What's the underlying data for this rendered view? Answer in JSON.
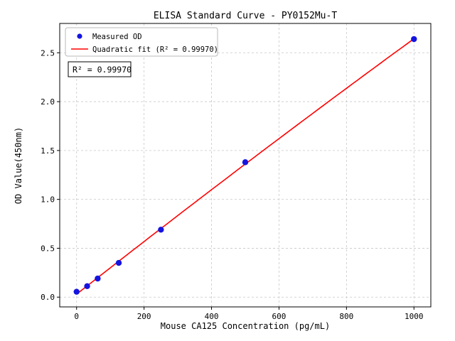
{
  "chart_data": {
    "type": "scatter",
    "title": "ELISA Standard Curve - PY0152Mu-T",
    "xlabel": "Mouse CA125 Concentration (pg/mL)",
    "ylabel": "OD Value(450nm)",
    "xlim": [
      -50,
      1050
    ],
    "ylim": [
      -0.1,
      2.8
    ],
    "xticks": [
      0,
      200,
      400,
      600,
      800,
      1000
    ],
    "yticks": [
      0,
      0.5,
      1.0,
      1.5,
      2.0,
      2.5
    ],
    "grid": true,
    "legend_position": "upper left",
    "series": [
      {
        "name": "Measured OD",
        "type": "scatter",
        "color": "#1414e0",
        "x": [
          0,
          31.25,
          62.5,
          125,
          250,
          500,
          1000
        ],
        "y": [
          0.055,
          0.112,
          0.19,
          0.35,
          0.69,
          1.38,
          2.64
        ]
      },
      {
        "name": "Quadratic fit (R² = 0.99970)",
        "type": "line",
        "fit": "quadratic",
        "color": "#ff0000"
      }
    ],
    "annotation": "R² = 0.99970",
    "r_squared": "0.99970",
    "colors": {
      "point": "#1414e0",
      "fit_line": "#ff0000",
      "grid": "#c8c8c8",
      "background": "#ffffff"
    }
  }
}
